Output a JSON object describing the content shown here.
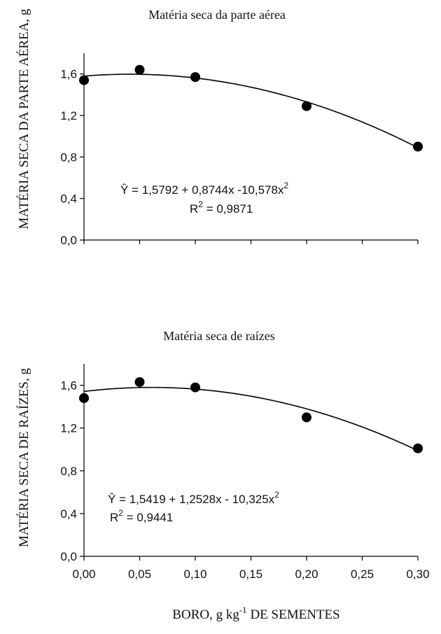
{
  "chart_data": [
    {
      "type": "scatter",
      "title": "Matéria seca da parte aérea",
      "ylabel": "MATÉRIA SECA DA PARTE AÉREA, g",
      "xlim": [
        0,
        0.3
      ],
      "ylim": [
        0,
        1.8
      ],
      "yticks": [
        "0,0",
        "0,4",
        "0,8",
        "1,2",
        "1,6"
      ],
      "ytick_values": [
        0,
        0.4,
        0.8,
        1.2,
        1.6
      ],
      "x_minor_ticks": [
        0,
        0.05,
        0.1,
        0.15,
        0.2,
        0.25,
        0.3
      ],
      "points": {
        "x": [
          0.0,
          0.05,
          0.1,
          0.2,
          0.3
        ],
        "y": [
          1.54,
          1.64,
          1.57,
          1.29,
          0.9
        ]
      },
      "fit": {
        "a": 1.5792,
        "b": 0.8744,
        "c": -10.578
      },
      "equation": "Ŷ = 1,5792 + 0,8744x -10,578x",
      "eq_exp": "2",
      "r2_prefix": "R",
      "r2_exp": "2",
      "r2_value": " = 0,9871"
    },
    {
      "type": "scatter",
      "title": "Matéria seca de raízes",
      "ylabel": "MATÉRIA SECA DE RAÍZES, g",
      "xlabel_main": "BORO, g kg",
      "xlabel_sup": "-1",
      "xlabel_tail": " DE SEMENTES",
      "xlim": [
        0,
        0.3
      ],
      "ylim": [
        0,
        1.8
      ],
      "yticks": [
        "0,0",
        "0,4",
        "0,8",
        "1,2",
        "1,6"
      ],
      "ytick_values": [
        0,
        0.4,
        0.8,
        1.2,
        1.6
      ],
      "xticks": [
        "0,00",
        "0,05",
        "0,10",
        "0,15",
        "0,20",
        "0,25",
        "0,30"
      ],
      "xtick_values": [
        0,
        0.05,
        0.1,
        0.15,
        0.2,
        0.25,
        0.3
      ],
      "points": {
        "x": [
          0.0,
          0.05,
          0.1,
          0.2,
          0.3
        ],
        "y": [
          1.48,
          1.63,
          1.58,
          1.3,
          1.01
        ]
      },
      "fit": {
        "a": 1.5419,
        "b": 1.2528,
        "c": -10.325
      },
      "equation": "Ŷ = 1,5419 + 1,2528x - 10,325x",
      "eq_exp": "2",
      "r2_prefix": "R",
      "r2_exp": "2",
      "r2_value": " = 0,9441"
    }
  ]
}
